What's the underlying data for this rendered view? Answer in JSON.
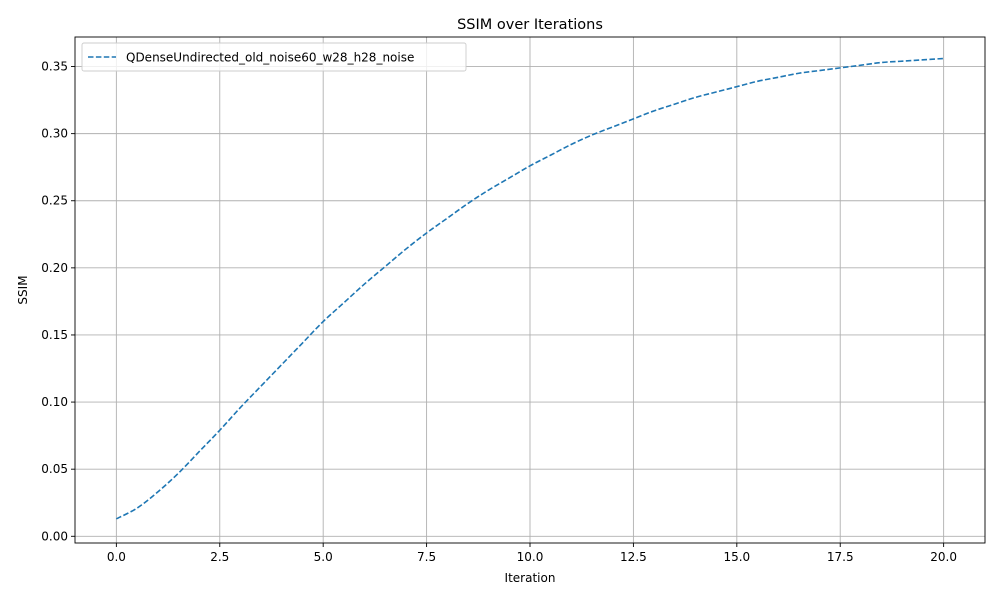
{
  "chart_data": {
    "type": "line",
    "title": "SSIM over Iterations",
    "xlabel": "Iteration",
    "ylabel": "SSIM",
    "xlim": [
      -1.0,
      21.0
    ],
    "ylim": [
      -0.005,
      0.372
    ],
    "xticks": [
      0.0,
      2.5,
      5.0,
      7.5,
      10.0,
      12.5,
      15.0,
      17.5,
      20.0
    ],
    "xtick_labels": [
      "0.0",
      "2.5",
      "5.0",
      "7.5",
      "10.0",
      "12.5",
      "15.0",
      "17.5",
      "20.0"
    ],
    "yticks": [
      0.0,
      0.05,
      0.1,
      0.15,
      0.2,
      0.25,
      0.3,
      0.35
    ],
    "ytick_labels": [
      "0.00",
      "0.05",
      "0.10",
      "0.15",
      "0.20",
      "0.25",
      "0.30",
      "0.35"
    ],
    "grid": true,
    "legend_position": "top-left",
    "series": [
      {
        "name": "QDenseUndirected_old_noise60_w28_h28_noise",
        "color": "#1f77b4",
        "linestyle": "dashed",
        "x": [
          0,
          0.5,
          1,
          1.5,
          2,
          2.5,
          3,
          3.5,
          4,
          4.5,
          5,
          5.5,
          6,
          6.5,
          7,
          7.5,
          8,
          8.5,
          9,
          9.5,
          10,
          10.5,
          11,
          11.5,
          12,
          12.5,
          13,
          13.5,
          14,
          14.5,
          15,
          15.5,
          16,
          16.5,
          17,
          17.5,
          18,
          18.5,
          19,
          19.5,
          20
        ],
        "y": [
          0.013,
          0.021,
          0.033,
          0.047,
          0.063,
          0.079,
          0.096,
          0.112,
          0.128,
          0.144,
          0.16,
          0.174,
          0.188,
          0.201,
          0.214,
          0.226,
          0.237,
          0.248,
          0.258,
          0.267,
          0.276,
          0.284,
          0.292,
          0.299,
          0.305,
          0.311,
          0.317,
          0.322,
          0.327,
          0.331,
          0.335,
          0.339,
          0.342,
          0.345,
          0.347,
          0.349,
          0.351,
          0.353,
          0.354,
          0.355,
          0.356
        ]
      }
    ]
  }
}
